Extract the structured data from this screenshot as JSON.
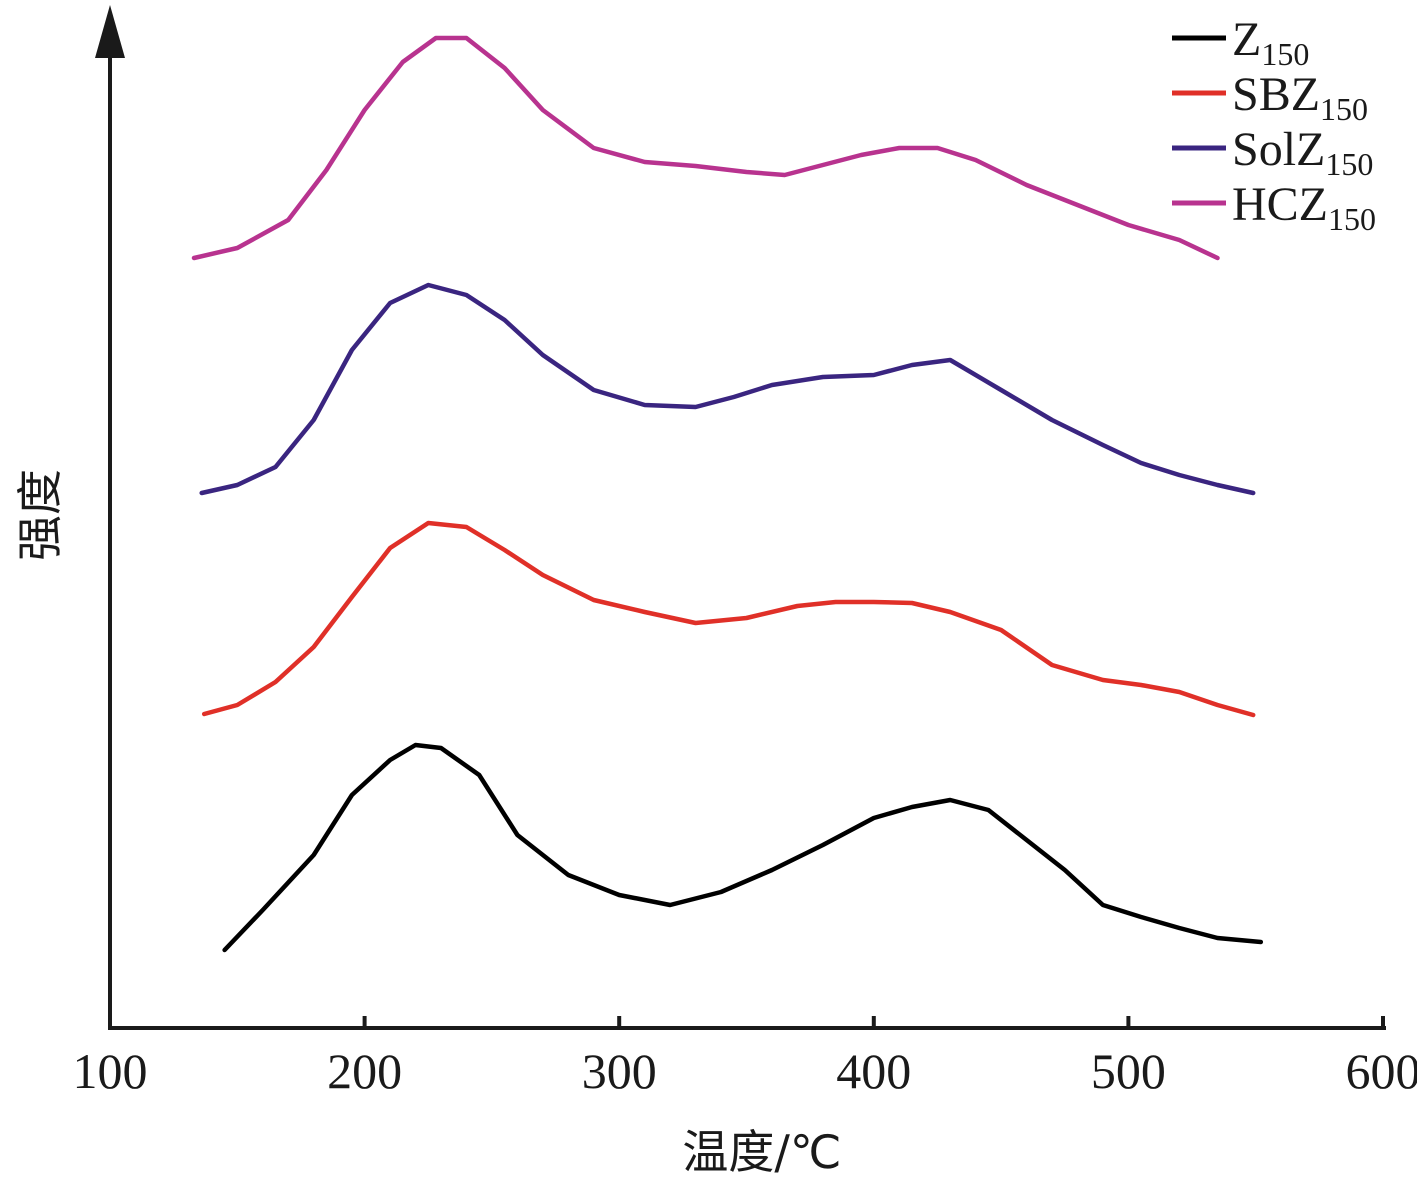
{
  "chart_data": {
    "type": "line",
    "xlabel": "温度/℃",
    "ylabel": "强度",
    "xlim": [
      100,
      600
    ],
    "x_ticks": [
      "100",
      "200",
      "300",
      "400",
      "500",
      "600"
    ],
    "y_ticks": [],
    "legend": "top-right",
    "grid": false,
    "series": [
      {
        "name": "Z",
        "name_sub": "150",
        "color": "#000000",
        "x": [
          145,
          160,
          180,
          195,
          210,
          220,
          230,
          245,
          260,
          280,
          300,
          320,
          340,
          360,
          380,
          400,
          415,
          430,
          445,
          460,
          475,
          490,
          505,
          520,
          535,
          552
        ],
        "y": [
          950,
          910,
          855,
          795,
          760,
          745,
          748,
          775,
          835,
          875,
          895,
          905,
          892,
          870,
          845,
          818,
          807,
          800,
          810,
          840,
          870,
          905,
          917,
          928,
          938,
          942
        ]
      },
      {
        "name": "SBZ",
        "name_sub": "150",
        "color": "#e03028",
        "x": [
          137,
          150,
          165,
          180,
          195,
          210,
          225,
          240,
          255,
          270,
          290,
          310,
          330,
          350,
          370,
          385,
          400,
          415,
          430,
          450,
          470,
          490,
          505,
          520,
          535,
          549
        ],
        "y": [
          714,
          705,
          682,
          647,
          597,
          548,
          523,
          527,
          550,
          575,
          600,
          612,
          623,
          618,
          606,
          602,
          602,
          603,
          612,
          630,
          665,
          680,
          685,
          692,
          705,
          715
        ]
      },
      {
        "name": "SolZ",
        "name_sub": "150",
        "color": "#3a2580",
        "x": [
          136,
          150,
          165,
          180,
          195,
          210,
          225,
          240,
          255,
          270,
          290,
          310,
          330,
          345,
          360,
          380,
          400,
          415,
          430,
          450,
          470,
          490,
          505,
          520,
          535,
          549
        ],
        "y": [
          493,
          485,
          467,
          420,
          350,
          303,
          285,
          295,
          320,
          355,
          390,
          405,
          407,
          397,
          385,
          377,
          375,
          365,
          360,
          390,
          420,
          445,
          463,
          475,
          485,
          493
        ]
      },
      {
        "name": "HCZ",
        "name_sub": "150",
        "color": "#b8338f",
        "x": [
          133,
          150,
          170,
          185,
          200,
          215,
          228,
          240,
          255,
          270,
          290,
          310,
          330,
          350,
          365,
          380,
          395,
          410,
          425,
          440,
          460,
          480,
          500,
          520,
          535
        ],
        "y": [
          258,
          248,
          220,
          170,
          110,
          62,
          38,
          38,
          68,
          110,
          148,
          162,
          166,
          172,
          175,
          165,
          155,
          148,
          148,
          160,
          185,
          205,
          225,
          240,
          258
        ]
      }
    ]
  }
}
